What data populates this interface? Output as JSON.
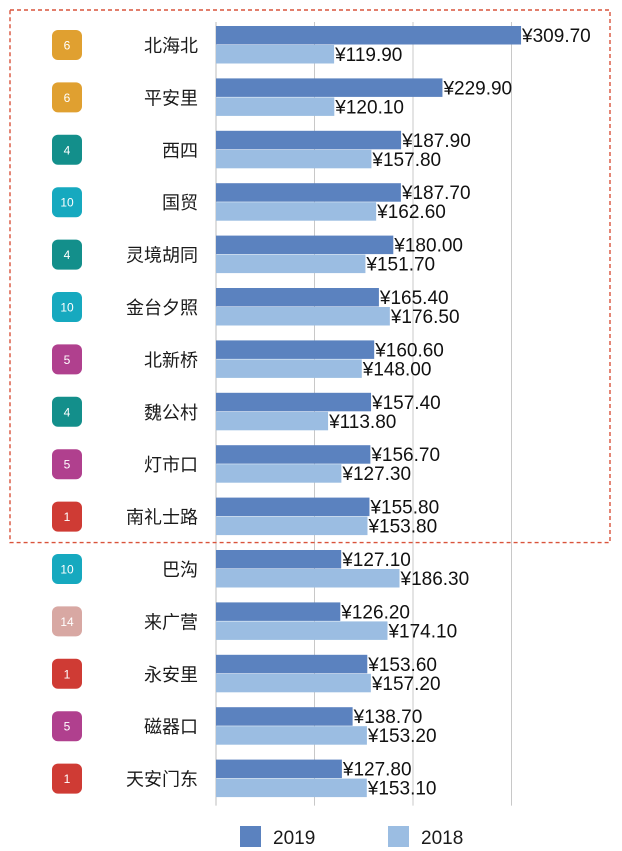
{
  "chart_data": {
    "type": "bar",
    "orientation": "horizontal",
    "categories": [
      "北海北",
      "平安里",
      "西四",
      "国贸",
      "灵境胡同",
      "金台夕照",
      "北新桥",
      "魏公村",
      "灯市口",
      "南礼士路",
      "巴沟",
      "来广营",
      "永安里",
      "磁器口",
      "天安门东"
    ],
    "line_badges": [
      "6",
      "6",
      "4",
      "10",
      "4",
      "10",
      "5",
      "4",
      "5",
      "1",
      "10",
      "14",
      "1",
      "5",
      "1"
    ],
    "badge_colors": [
      "#e0a030",
      "#e0a030",
      "#138f8b",
      "#16a9bf",
      "#138f8b",
      "#16a9bf",
      "#b0408e",
      "#138f8b",
      "#b0408e",
      "#cf3b34",
      "#16a9bf",
      "#d8a8a3",
      "#cf3b34",
      "#b0408e",
      "#cf3b34"
    ],
    "series": [
      {
        "name": "2019",
        "color": "#5b82bf",
        "values": [
          309.7,
          229.9,
          187.9,
          187.7,
          180.0,
          165.4,
          160.6,
          157.4,
          156.7,
          155.8,
          127.1,
          126.2,
          153.6,
          138.7,
          127.8
        ]
      },
      {
        "name": "2018",
        "color": "#9bbde2",
        "values": [
          119.9,
          120.1,
          157.8,
          162.6,
          151.7,
          176.5,
          148.0,
          113.8,
          127.3,
          153.8,
          186.3,
          174.1,
          157.2,
          153.2,
          153.1
        ]
      }
    ],
    "value_prefix": "¥",
    "xlim": [
      0,
      400
    ],
    "grid": true,
    "legend_position": "bottom",
    "highlight_box": {
      "color": "#d9533b",
      "first_index": 0,
      "last_index": 9
    }
  }
}
